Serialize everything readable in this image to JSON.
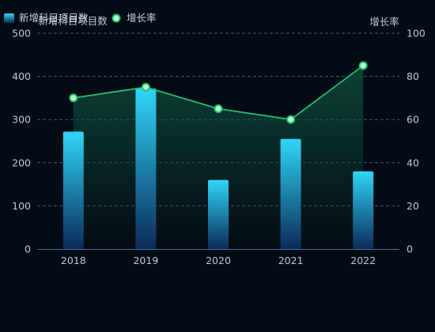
{
  "colors": {
    "background": "#040b14",
    "bar_top": "#2fd6f8",
    "bar_bottom": "#0b2a58",
    "line": "#20c070",
    "area_top": "#0c4a3a",
    "marker_fill": "#b8ffd2",
    "grid": "#3a6e96",
    "axis_text": "#b9c9d8",
    "legend_text": "#c3d3e0"
  },
  "chart_data": {
    "type": "bar",
    "categories": [
      "2018",
      "2019",
      "2020",
      "2021",
      "2022"
    ],
    "series": [
      {
        "name": "新增科目项目数",
        "type": "bar",
        "axis": "left",
        "values": [
          272,
          372,
          160,
          255,
          180
        ]
      },
      {
        "name": "增长率",
        "type": "line",
        "axis": "right",
        "values": [
          70,
          75,
          65,
          60,
          85
        ]
      }
    ],
    "ylabel_left": "新增科目项目数",
    "ylabel_right": "增长率",
    "ylim_left": [
      0,
      500
    ],
    "ylim_right": [
      0,
      100
    ],
    "yticks_left": [
      "0",
      "100",
      "200",
      "300",
      "400",
      "500"
    ],
    "yticks_right": [
      "0",
      "20",
      "40",
      "60",
      "80",
      "100"
    ],
    "grid": true,
    "legend_position": "top-left"
  }
}
